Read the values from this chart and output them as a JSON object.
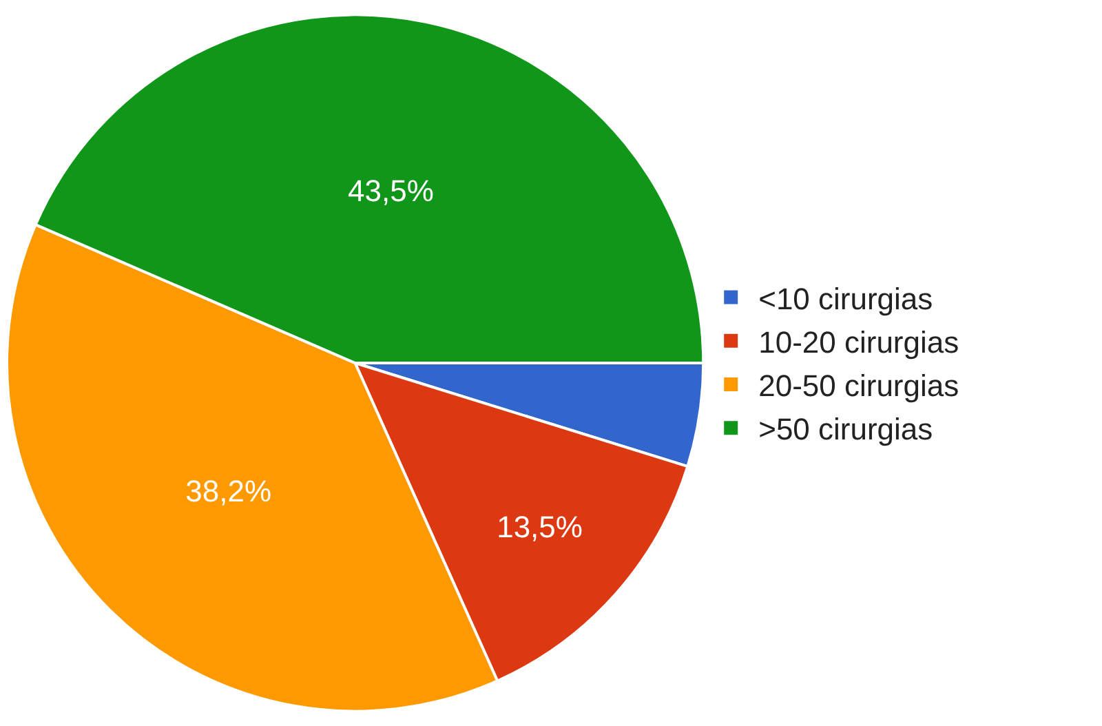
{
  "chart_data": {
    "type": "pie",
    "categories": [
      "<10 cirurgias",
      "10-20 cirurgias",
      "20-50 cirurgias",
      ">50 cirurgias"
    ],
    "values": [
      4.8,
      13.5,
      38.2,
      43.5
    ],
    "value_labels": [
      null,
      "13,5%",
      "38,2%",
      "43,5%"
    ],
    "colors": [
      "#3366cc",
      "#dc3912",
      "#ff9900",
      "#109618"
    ],
    "legend": "right"
  }
}
